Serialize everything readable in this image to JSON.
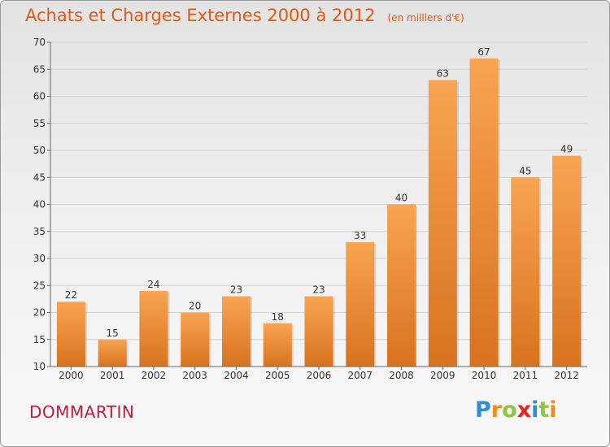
{
  "title": "Achats et Charges Externes 2000 à 2012",
  "subtitle": "(en milliers d'€)",
  "commune": "DOMMARTIN",
  "logo": {
    "letters": [
      {
        "ch": "P",
        "color": "#2f8fd6"
      },
      {
        "ch": "r",
        "color": "#f28a1e"
      },
      {
        "ch": "o",
        "color": "#8cc63f"
      },
      {
        "ch": "x",
        "color": "#e8231f"
      },
      {
        "ch": "i",
        "color": "#2f8fd6"
      },
      {
        "ch": "t",
        "color": "#8cc63f"
      },
      {
        "ch": "i",
        "color": "#f28a1e"
      }
    ]
  },
  "colors": {
    "bar_top": "#f8a452",
    "bar_bottom": "#d8731e",
    "title": "#e05a13",
    "commune": "#c8193c"
  },
  "chart_data": {
    "type": "bar",
    "title": "Achats et Charges Externes 2000 à 2012",
    "subtitle": "(en milliers d'€)",
    "categories": [
      "2000",
      "2001",
      "2002",
      "2003",
      "2004",
      "2005",
      "2006",
      "2007",
      "2008",
      "2009",
      "2010",
      "2011",
      "2012"
    ],
    "values": [
      22,
      15,
      24,
      20,
      23,
      18,
      23,
      33,
      40,
      63,
      67,
      45,
      49
    ],
    "ylim": [
      10,
      70
    ],
    "yticks": [
      10,
      15,
      20,
      25,
      30,
      35,
      40,
      45,
      50,
      55,
      60,
      65,
      70
    ],
    "xlabel": "",
    "ylabel": "",
    "grid": true
  }
}
